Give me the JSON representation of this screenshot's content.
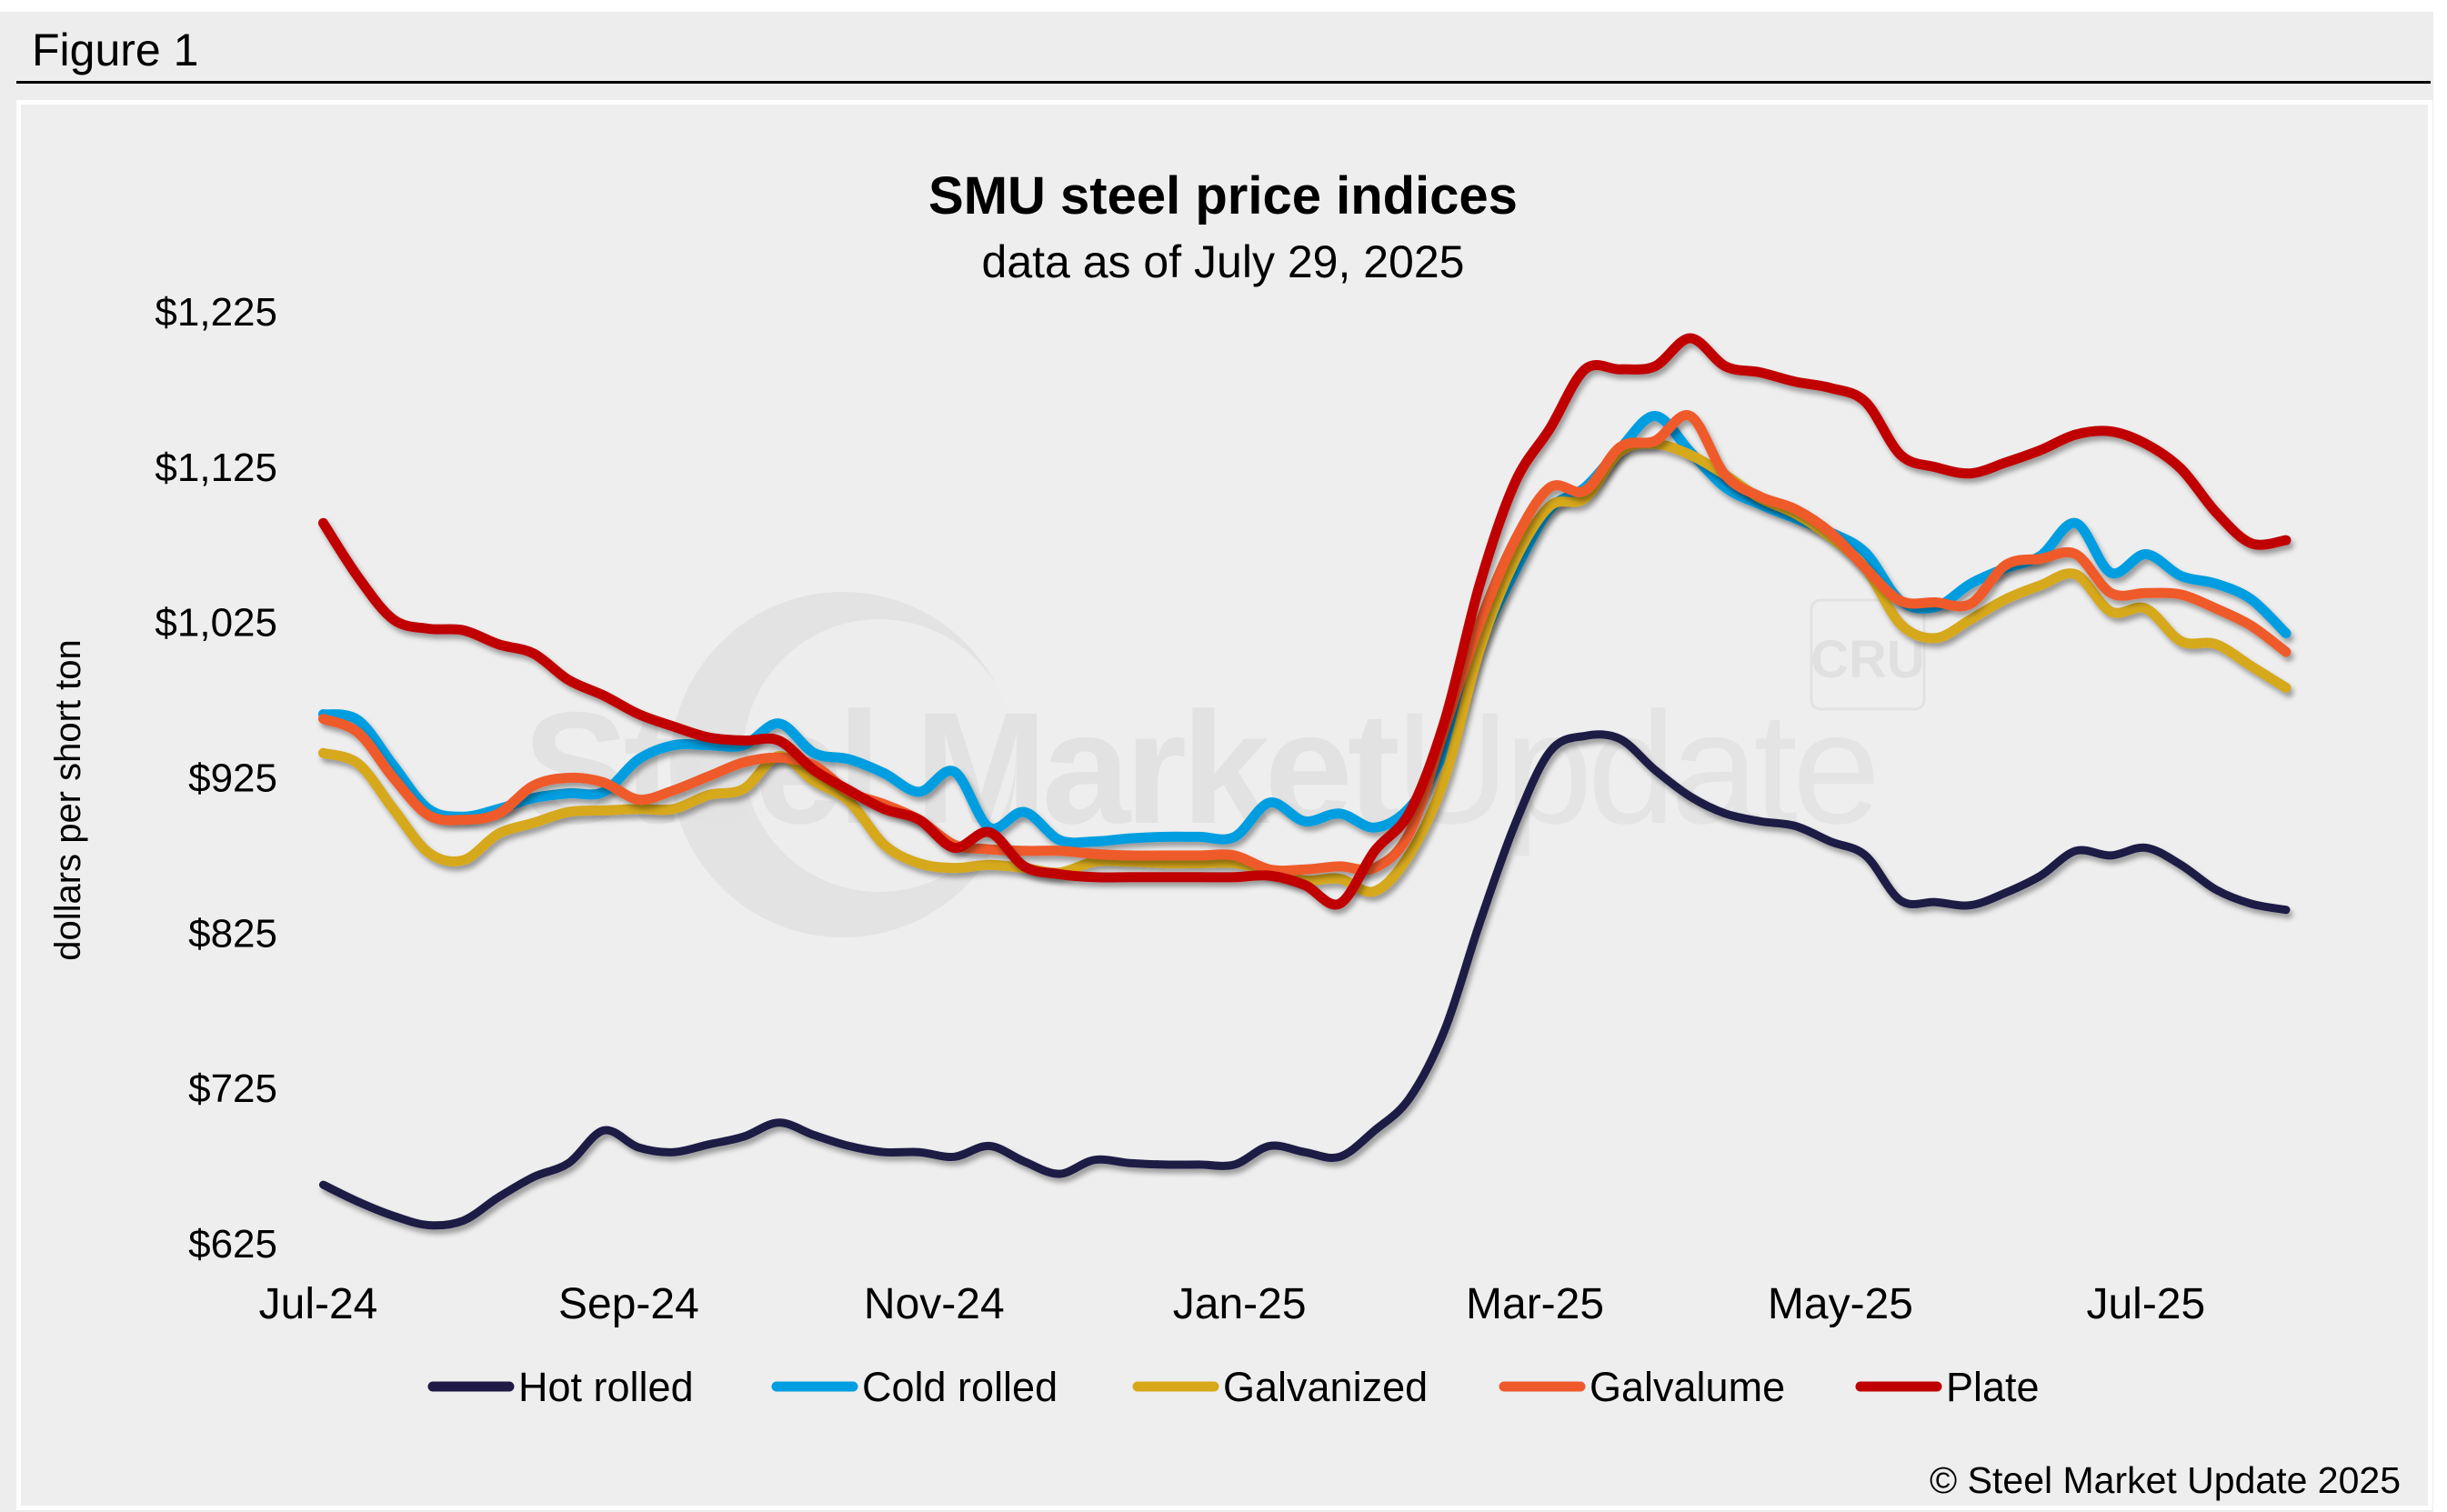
{
  "figure_label": "Figure 1",
  "copyright": "© Steel Market Update 2025",
  "watermark": {
    "text_bold": "Steel Market",
    "text_light": "Update",
    "badge": "CRU"
  },
  "chart_data": {
    "type": "line",
    "title": "SMU steel price indices",
    "subtitle": "data as of July 29, 2025",
    "xlabel": "",
    "ylabel": "dollars per short ton",
    "ylim": [
      625,
      1225
    ],
    "yticks": [
      625,
      725,
      825,
      925,
      1025,
      1125,
      1225
    ],
    "ytick_labels": [
      "$625",
      "$725",
      "$825",
      "$925",
      "$1,025",
      "$1,125",
      "$1,225"
    ],
    "xlim": [
      "2024-07-01",
      "2025-07-29"
    ],
    "xticks": [
      "2024-07-01",
      "2024-09-01",
      "2024-11-01",
      "2025-01-01",
      "2025-03-01",
      "2025-05-01",
      "2025-07-01"
    ],
    "xtick_labels": [
      "Jul-24",
      "Sep-24",
      "Nov-24",
      "Jan-25",
      "Mar-25",
      "May-25",
      "Jul-25"
    ],
    "grid": false,
    "legend_position": "bottom",
    "x_start": "2024-07-02",
    "x_step_days": 7,
    "series": [
      {
        "name": "Hot rolled",
        "color": "#1f1a45",
        "values": [
          663,
          652,
          643,
          637,
          640,
          655,
          668,
          677,
          698,
          687,
          684,
          689,
          694,
          703,
          695,
          688,
          684,
          684,
          681,
          688,
          678,
          670,
          679,
          677,
          676,
          676,
          676,
          688,
          684,
          681,
          698,
          719,
          763,
          832,
          895,
          942,
          952,
          950,
          930,
          913,
          902,
          897,
          894,
          884,
          875,
          846,
          845,
          843,
          851,
          862,
          878,
          875,
          880,
          869,
          853,
          844,
          840
        ]
      },
      {
        "name": "Cold rolled",
        "color": "#009ee0",
        "values": [
          966,
          962,
          933,
          905,
          900,
          905,
          912,
          915,
          916,
          937,
          946,
          946,
          946,
          960,
          941,
          937,
          928,
          916,
          929,
          893,
          903,
          885,
          884,
          886,
          887,
          887,
          887,
          909,
          897,
          902,
          893,
          906,
          943,
          1010,
          1058,
          1098,
          1112,
          1137,
          1158,
          1135,
          1112,
          1101,
          1092,
          1083,
          1070,
          1039,
          1035,
          1050,
          1060,
          1068,
          1089,
          1057,
          1069,
          1055,
          1050,
          1040,
          1018
        ]
      },
      {
        "name": "Galvanized",
        "color": "#d6a81a",
        "values": [
          941,
          934,
          905,
          877,
          872,
          889,
          896,
          903,
          904,
          905,
          905,
          914,
          918,
          939,
          923,
          910,
          882,
          870,
          867,
          869,
          867,
          864,
          871,
          871,
          870,
          870,
          870,
          865,
          859,
          860,
          852,
          876,
          925,
          1008,
          1065,
          1100,
          1105,
          1135,
          1140,
          1133,
          1120,
          1105,
          1095,
          1080,
          1060,
          1024,
          1015,
          1027,
          1040,
          1049,
          1056,
          1032,
          1034,
          1013,
          1011,
          997,
          983
        ]
      },
      {
        "name": "Galvalume",
        "color": "#ef5a2c",
        "values": [
          963,
          954,
          925,
          901,
          898,
          902,
          920,
          925,
          922,
          911,
          917,
          926,
          935,
          938,
          933,
          916,
          908,
          898,
          882,
          879,
          878,
          878,
          876,
          875,
          875,
          875,
          875,
          866,
          866,
          868,
          867,
          890,
          957,
          1025,
          1078,
          1112,
          1110,
          1138,
          1142,
          1158,
          1120,
          1106,
          1098,
          1083,
          1060,
          1039,
          1038,
          1037,
          1062,
          1066,
          1069,
          1044,
          1044,
          1043,
          1034,
          1023,
          1006
        ]
      },
      {
        "name": "Plate",
        "color": "#c00000",
        "values": [
          1089,
          1054,
          1027,
          1021,
          1020,
          1011,
          1005,
          988,
          978,
          966,
          958,
          951,
          949,
          949,
          930,
          917,
          905,
          898,
          880,
          890,
          868,
          863,
          861,
          861,
          861,
          861,
          861,
          862,
          856,
          844,
          878,
          903,
          962,
          1050,
          1115,
          1150,
          1188,
          1188,
          1190,
          1208,
          1190,
          1186,
          1180,
          1176,
          1167,
          1133,
          1125,
          1121,
          1128,
          1136,
          1146,
          1148,
          1140,
          1124,
          1096,
          1076,
          1078
        ]
      }
    ]
  }
}
